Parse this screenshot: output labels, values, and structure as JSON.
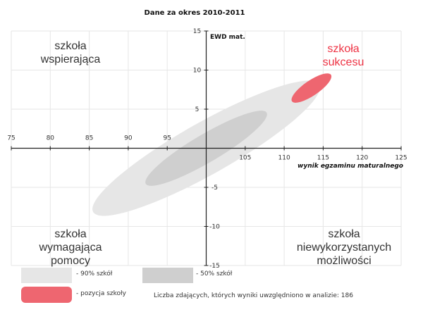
{
  "chart_data": {
    "type": "scatter",
    "title": "Dane za okres 2010-2011",
    "xlabel": "wynik egzaminu maturalnego",
    "ylabel": "EWD mat.",
    "xlim": [
      75,
      125
    ],
    "ylim": [
      -15,
      15
    ],
    "x_ticks": [
      75,
      80,
      85,
      90,
      95,
      105,
      110,
      115,
      120,
      125
    ],
    "y_ticks": [
      15,
      10,
      5,
      -5,
      -10,
      -15
    ],
    "grid": true,
    "regions": [
      {
        "name": "90% szkół",
        "color": "#e6e6e6",
        "center": [
          100,
          0
        ],
        "x_extent": [
          84,
          113
        ],
        "y_extent": [
          -8.5,
          7.8
        ]
      },
      {
        "name": "50% szkół",
        "color": "#cfcfcf",
        "center": [
          100,
          0
        ],
        "x_extent": [
          92,
          107.5
        ],
        "y_extent": [
          -4.5,
          4.6
        ]
      },
      {
        "name": "pozycja szkoły",
        "color": "#ee6670",
        "center": [
          113.5,
          7.7
        ],
        "x_extent": [
          111,
          116
        ],
        "y_extent": [
          6.0,
          9.4
        ]
      }
    ],
    "quadrant_labels": {
      "top_left": "szkoła\nwspierająca",
      "top_right": "szkoła\nsukcesu",
      "bottom_left": "szkoła\nwymagająca\npomocy",
      "bottom_right": "szkoła\nniewykorzystanych\nmożliwości"
    },
    "legend": [
      {
        "label": "- 90% szkół",
        "color": "#e6e6e6"
      },
      {
        "label": "- 50% szkół",
        "color": "#cfcfcf"
      },
      {
        "label": "- pozycja szkoły",
        "color": "#ee6670"
      }
    ],
    "note": "Liczba zdających, których wyniki uwzględniono w analizie: 186",
    "colors": {
      "grid": "#e6e6e6",
      "axis": "#222222",
      "accent": "#ee3344"
    }
  }
}
